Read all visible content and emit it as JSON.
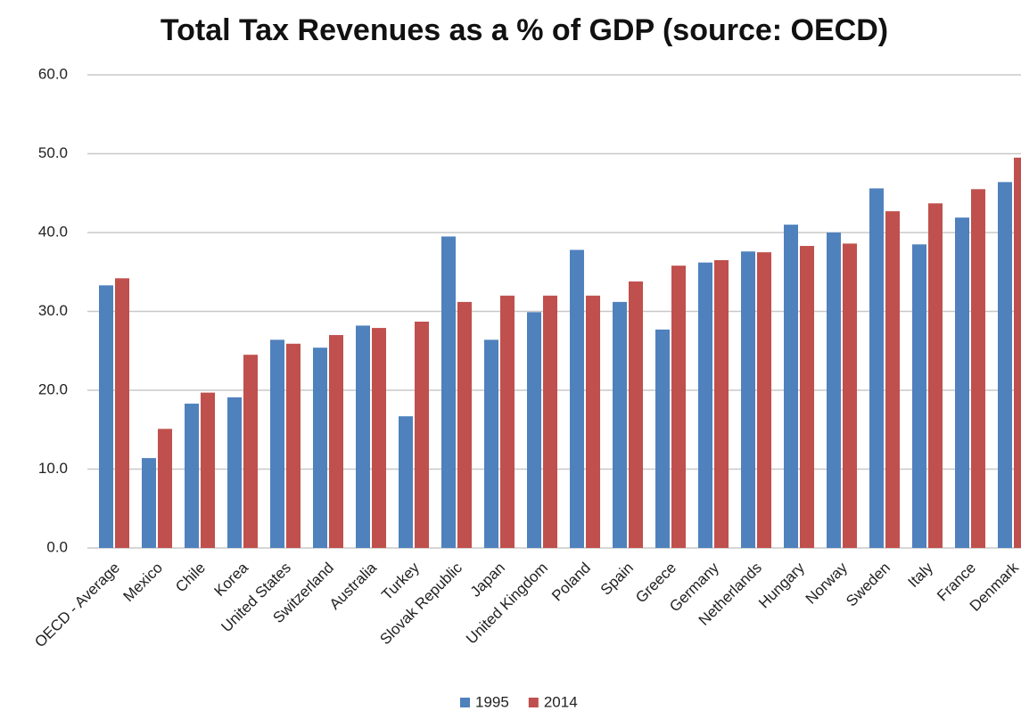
{
  "chart_data": {
    "type": "bar",
    "title": "Total Tax Revenues as a % of GDP (source: OECD)",
    "categories": [
      "OECD - Average",
      "Mexico",
      "Chile",
      "Korea",
      "United States",
      "Switzerland",
      "Australia",
      "Turkey",
      "Slovak Republic",
      "Japan",
      "United Kingdom",
      "Poland",
      "Spain",
      "Greece",
      "Germany",
      "Netherlands",
      "Hungary",
      "Norway",
      "Sweden",
      "Italy",
      "France",
      "Denmark"
    ],
    "series": [
      {
        "name": "1995",
        "color": "#4f81bd",
        "values": [
          33.3,
          11.4,
          18.3,
          19.1,
          26.4,
          25.4,
          28.2,
          16.7,
          39.5,
          26.4,
          29.9,
          37.8,
          31.2,
          27.7,
          36.2,
          37.6,
          41.0,
          40.0,
          45.6,
          38.5,
          41.9,
          46.4
        ]
      },
      {
        "name": "2014",
        "color": "#c0504d",
        "values": [
          34.2,
          15.1,
          19.7,
          24.5,
          25.9,
          27.0,
          27.9,
          28.7,
          31.2,
          32.0,
          32.0,
          32.0,
          33.8,
          35.8,
          36.5,
          37.5,
          38.3,
          38.6,
          42.7,
          43.7,
          45.5,
          49.5
        ]
      }
    ],
    "ylim": [
      0,
      60
    ],
    "yticks": [
      {
        "value": 0,
        "label": "0.0"
      },
      {
        "value": 10,
        "label": "10.0"
      },
      {
        "value": 20,
        "label": "20.0"
      },
      {
        "value": 30,
        "label": "30.0"
      },
      {
        "value": 40,
        "label": "40.0"
      },
      {
        "value": 50,
        "label": "50.0"
      },
      {
        "value": 60,
        "label": "60.0"
      }
    ],
    "grid": true,
    "legend": "bottom"
  }
}
